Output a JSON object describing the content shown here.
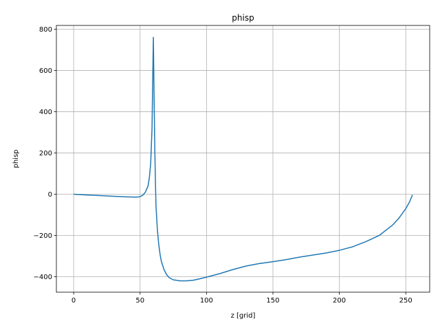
{
  "chart_data": {
    "type": "line",
    "title": "phisp",
    "xlabel": "z [grid]",
    "ylabel": "phisp",
    "xlim": [
      -13,
      268
    ],
    "ylim": [
      -475,
      818
    ],
    "xticks": [
      0,
      50,
      100,
      150,
      200,
      250
    ],
    "yticks": [
      -400,
      -200,
      0,
      200,
      400,
      600,
      800
    ],
    "ytick_labels": [
      "−400",
      "−200",
      "0",
      "200",
      "400",
      "600",
      "800"
    ],
    "grid": true,
    "series": [
      {
        "color": "#1f77b4",
        "x": [
          0,
          10,
          20,
          30,
          40,
          45,
          48,
          50,
          52,
          54,
          56,
          57,
          58,
          59,
          59.5,
          60,
          60.5,
          61,
          61.5,
          62,
          63,
          64,
          65,
          66,
          68,
          70,
          72,
          75,
          80,
          85,
          90,
          95,
          100,
          110,
          120,
          130,
          140,
          150,
          160,
          170,
          180,
          190,
          200,
          210,
          220,
          230,
          240,
          245,
          250,
          253,
          255
        ],
        "y": [
          0,
          -4,
          -7,
          -10,
          -13,
          -14,
          -14,
          -12,
          -5,
          10,
          40,
          80,
          150,
          320,
          550,
          760,
          500,
          250,
          80,
          -60,
          -170,
          -240,
          -290,
          -325,
          -365,
          -390,
          -405,
          -415,
          -420,
          -420,
          -417,
          -410,
          -402,
          -385,
          -365,
          -348,
          -336,
          -327,
          -317,
          -305,
          -295,
          -285,
          -272,
          -255,
          -230,
          -200,
          -150,
          -115,
          -70,
          -35,
          -3
        ]
      }
    ]
  }
}
